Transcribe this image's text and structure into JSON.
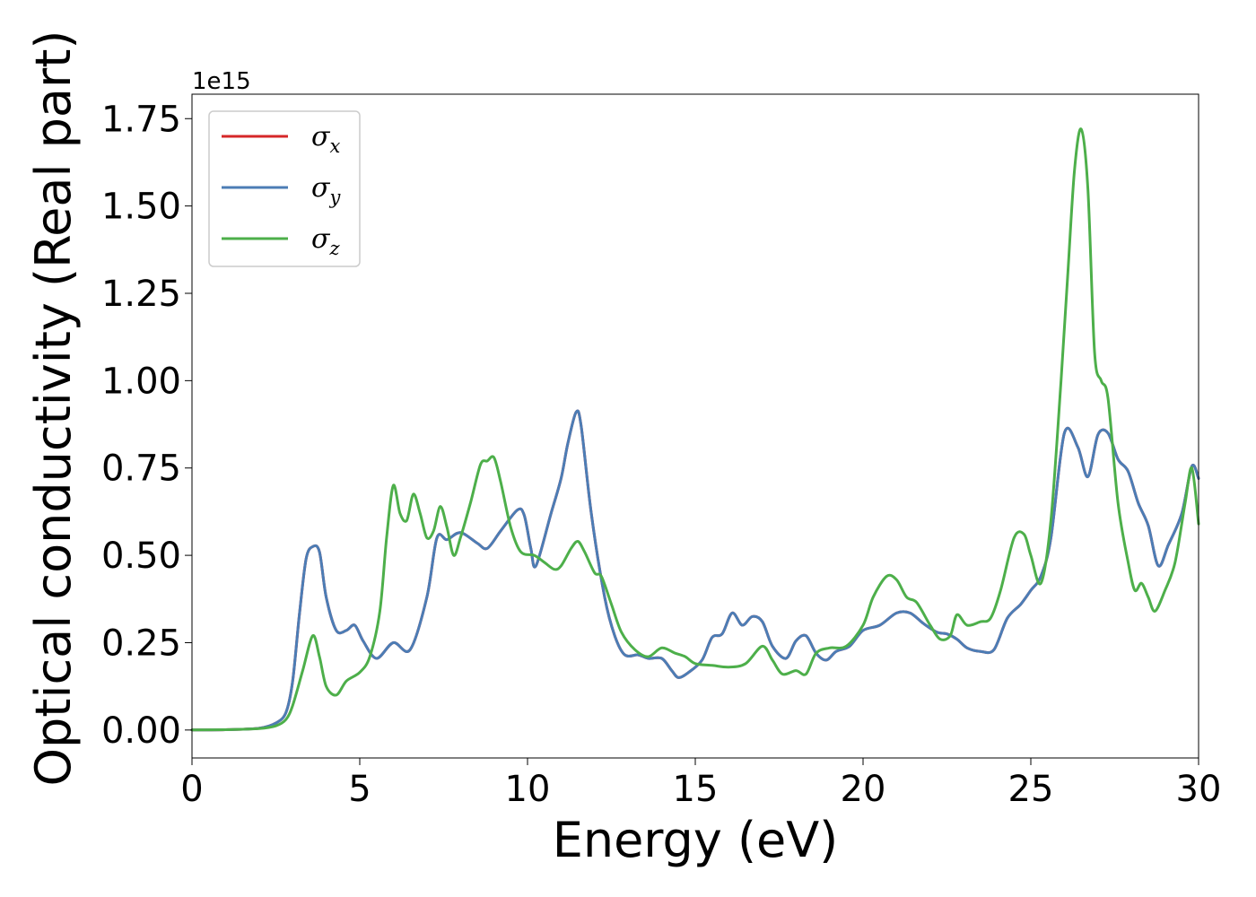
{
  "chart_data": {
    "type": "line",
    "xlabel": "Energy (eV)",
    "ylabel": "Optical conductivity (Real part)",
    "y_offset_text": "1e15",
    "xlim": [
      0,
      30
    ],
    "ylim": [
      -0.08,
      1.82
    ],
    "x_ticks": [
      0,
      5,
      10,
      15,
      20,
      25,
      30
    ],
    "x_tick_labels": [
      "0",
      "5",
      "10",
      "15",
      "20",
      "25",
      "30"
    ],
    "y_ticks": [
      0,
      0.25,
      0.5,
      0.75,
      1.0,
      1.25,
      1.5,
      1.75
    ],
    "y_tick_labels": [
      "0.00",
      "0.25",
      "0.50",
      "0.75",
      "1.00",
      "1.25",
      "1.50",
      "1.75"
    ],
    "legend_position": "top-left",
    "grid": false,
    "series": [
      {
        "name": "σ_x",
        "label_main": "σ",
        "label_sub": "x",
        "color": "#d62728",
        "x": [
          0,
          1,
          2,
          2.5,
          2.8,
          3.0,
          3.2,
          3.4,
          3.6,
          3.8,
          4.0,
          4.3,
          4.6,
          4.85,
          5.1,
          5.5,
          6.0,
          6.5,
          7.0,
          7.3,
          7.6,
          8.0,
          8.5,
          8.8,
          9.2,
          9.7,
          9.9,
          10.1,
          10.25,
          10.7,
          11.0,
          11.2,
          11.45,
          11.6,
          11.9,
          12.3,
          12.6,
          12.9,
          13.3,
          13.6,
          14.0,
          14.3,
          14.5,
          14.8,
          15.2,
          15.5,
          15.8,
          16.1,
          16.4,
          16.7,
          17.0,
          17.3,
          17.7,
          18.0,
          18.3,
          18.6,
          18.9,
          19.2,
          19.6,
          20.0,
          20.5,
          21.0,
          21.4,
          21.8,
          22.2,
          22.5,
          22.8,
          23.1,
          23.5,
          23.9,
          24.3,
          24.7,
          25.0,
          25.3,
          25.6,
          26.0,
          26.4,
          26.7,
          27.0,
          27.3,
          27.6,
          27.9,
          28.2,
          28.5,
          28.8,
          29.1,
          29.5,
          29.8,
          30.0
        ],
        "y": [
          0,
          0.001,
          0.005,
          0.02,
          0.05,
          0.14,
          0.33,
          0.49,
          0.525,
          0.51,
          0.38,
          0.285,
          0.285,
          0.3,
          0.255,
          0.205,
          0.25,
          0.23,
          0.38,
          0.55,
          0.545,
          0.565,
          0.535,
          0.52,
          0.57,
          0.63,
          0.615,
          0.52,
          0.47,
          0.62,
          0.72,
          0.82,
          0.91,
          0.87,
          0.62,
          0.38,
          0.27,
          0.215,
          0.215,
          0.205,
          0.205,
          0.17,
          0.15,
          0.165,
          0.2,
          0.265,
          0.275,
          0.335,
          0.3,
          0.325,
          0.31,
          0.24,
          0.205,
          0.255,
          0.27,
          0.22,
          0.2,
          0.225,
          0.24,
          0.285,
          0.3,
          0.335,
          0.335,
          0.305,
          0.28,
          0.275,
          0.26,
          0.235,
          0.225,
          0.23,
          0.32,
          0.36,
          0.4,
          0.44,
          0.55,
          0.85,
          0.81,
          0.725,
          0.845,
          0.85,
          0.775,
          0.74,
          0.65,
          0.585,
          0.47,
          0.53,
          0.62,
          0.755,
          0.72
        ]
      },
      {
        "name": "σ_y",
        "label_main": "σ",
        "label_sub": "y",
        "color": "#4c7db5",
        "x": [
          0,
          1,
          2,
          2.5,
          2.8,
          3.0,
          3.2,
          3.4,
          3.6,
          3.8,
          4.0,
          4.3,
          4.6,
          4.85,
          5.1,
          5.5,
          6.0,
          6.5,
          7.0,
          7.3,
          7.6,
          8.0,
          8.5,
          8.8,
          9.2,
          9.7,
          9.9,
          10.1,
          10.25,
          10.7,
          11.0,
          11.2,
          11.45,
          11.6,
          11.9,
          12.3,
          12.6,
          12.9,
          13.3,
          13.6,
          14.0,
          14.3,
          14.5,
          14.8,
          15.2,
          15.5,
          15.8,
          16.1,
          16.4,
          16.7,
          17.0,
          17.3,
          17.7,
          18.0,
          18.3,
          18.6,
          18.9,
          19.2,
          19.6,
          20.0,
          20.5,
          21.0,
          21.4,
          21.8,
          22.2,
          22.5,
          22.8,
          23.1,
          23.5,
          23.9,
          24.3,
          24.7,
          25.0,
          25.3,
          25.6,
          26.0,
          26.4,
          26.7,
          27.0,
          27.3,
          27.6,
          27.9,
          28.2,
          28.5,
          28.8,
          29.1,
          29.5,
          29.8,
          30.0
        ],
        "y": [
          0,
          0.001,
          0.005,
          0.02,
          0.05,
          0.14,
          0.33,
          0.49,
          0.525,
          0.51,
          0.38,
          0.285,
          0.285,
          0.3,
          0.255,
          0.205,
          0.25,
          0.23,
          0.38,
          0.55,
          0.545,
          0.565,
          0.535,
          0.52,
          0.57,
          0.63,
          0.615,
          0.52,
          0.47,
          0.62,
          0.72,
          0.82,
          0.91,
          0.87,
          0.62,
          0.38,
          0.27,
          0.215,
          0.215,
          0.205,
          0.205,
          0.17,
          0.15,
          0.165,
          0.2,
          0.265,
          0.275,
          0.335,
          0.3,
          0.325,
          0.31,
          0.24,
          0.205,
          0.255,
          0.27,
          0.22,
          0.2,
          0.225,
          0.24,
          0.285,
          0.3,
          0.335,
          0.335,
          0.305,
          0.28,
          0.275,
          0.26,
          0.235,
          0.225,
          0.23,
          0.32,
          0.36,
          0.4,
          0.44,
          0.55,
          0.85,
          0.81,
          0.725,
          0.845,
          0.85,
          0.775,
          0.74,
          0.65,
          0.585,
          0.47,
          0.53,
          0.62,
          0.755,
          0.72
        ]
      },
      {
        "name": "σ_z",
        "label_main": "σ",
        "label_sub": "z",
        "color": "#4daf4a",
        "x": [
          0,
          1,
          2,
          2.5,
          2.8,
          3.0,
          3.3,
          3.6,
          3.8,
          4.0,
          4.3,
          4.6,
          5.0,
          5.3,
          5.6,
          5.8,
          6.0,
          6.2,
          6.4,
          6.6,
          6.8,
          7.0,
          7.2,
          7.4,
          7.6,
          7.8,
          8.0,
          8.3,
          8.6,
          8.8,
          9.0,
          9.2,
          9.5,
          9.8,
          10.2,
          10.5,
          10.8,
          11.0,
          11.3,
          11.5,
          11.7,
          12.0,
          12.2,
          12.5,
          12.8,
          13.2,
          13.6,
          14.0,
          14.4,
          14.7,
          15.0,
          15.5,
          16.0,
          16.5,
          17.0,
          17.3,
          17.6,
          18.0,
          18.3,
          18.6,
          19.0,
          19.5,
          20.0,
          20.3,
          20.7,
          21.0,
          21.3,
          21.6,
          22.0,
          22.3,
          22.6,
          22.8,
          23.1,
          23.5,
          23.8,
          24.1,
          24.5,
          24.8,
          25.0,
          25.3,
          25.6,
          25.9,
          26.1,
          26.3,
          26.5,
          26.7,
          26.9,
          27.1,
          27.3,
          27.6,
          27.9,
          28.1,
          28.3,
          28.5,
          28.7,
          29.0,
          29.3,
          29.6,
          29.8,
          30.0
        ],
        "y": [
          0,
          0.001,
          0.004,
          0.012,
          0.03,
          0.07,
          0.17,
          0.27,
          0.21,
          0.125,
          0.1,
          0.14,
          0.165,
          0.21,
          0.34,
          0.55,
          0.7,
          0.62,
          0.6,
          0.675,
          0.62,
          0.55,
          0.57,
          0.64,
          0.58,
          0.5,
          0.55,
          0.65,
          0.76,
          0.77,
          0.78,
          0.71,
          0.58,
          0.51,
          0.5,
          0.48,
          0.46,
          0.47,
          0.52,
          0.54,
          0.51,
          0.45,
          0.44,
          0.36,
          0.28,
          0.23,
          0.21,
          0.235,
          0.22,
          0.21,
          0.19,
          0.185,
          0.18,
          0.19,
          0.24,
          0.2,
          0.16,
          0.17,
          0.16,
          0.22,
          0.235,
          0.24,
          0.3,
          0.38,
          0.44,
          0.43,
          0.38,
          0.365,
          0.3,
          0.26,
          0.27,
          0.33,
          0.3,
          0.31,
          0.32,
          0.4,
          0.55,
          0.56,
          0.5,
          0.42,
          0.6,
          1.0,
          1.3,
          1.6,
          1.72,
          1.55,
          1.08,
          1.0,
          0.95,
          0.65,
          0.48,
          0.4,
          0.42,
          0.38,
          0.34,
          0.4,
          0.48,
          0.65,
          0.75,
          0.59
        ]
      }
    ]
  }
}
